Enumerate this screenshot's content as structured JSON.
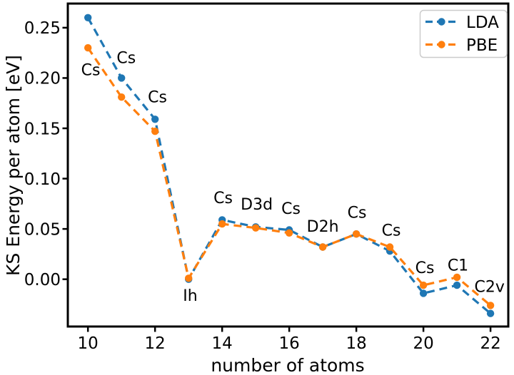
{
  "chart_data": {
    "type": "line",
    "xlabel": "number of atoms",
    "ylabel": "KS Energy per atom [eV]",
    "x": [
      10,
      11,
      12,
      13,
      14,
      15,
      16,
      17,
      18,
      19,
      20,
      21,
      22
    ],
    "series": [
      {
        "name": "LDA",
        "color": "#1f77b4",
        "linestyle": "dashed",
        "marker": "circle",
        "values": [
          0.26,
          0.2,
          0.159,
          0.0,
          0.059,
          0.052,
          0.049,
          0.032,
          0.045,
          0.028,
          -0.014,
          -0.006,
          -0.034
        ]
      },
      {
        "name": "PBE",
        "color": "#ff7f0e",
        "linestyle": "dashed",
        "marker": "circle",
        "values": [
          0.23,
          0.181,
          0.147,
          0.001,
          0.055,
          0.051,
          0.046,
          0.032,
          0.045,
          0.032,
          -0.006,
          0.002,
          -0.026
        ]
      }
    ],
    "xticks": [
      {
        "value": 10,
        "label": "10"
      },
      {
        "value": 12,
        "label": "12"
      },
      {
        "value": 14,
        "label": "14"
      },
      {
        "value": 16,
        "label": "16"
      },
      {
        "value": 18,
        "label": "18"
      },
      {
        "value": 20,
        "label": "20"
      },
      {
        "value": 22,
        "label": "22"
      }
    ],
    "yticks": [
      {
        "value": 0.0,
        "label": "0.00"
      },
      {
        "value": 0.05,
        "label": "0.05"
      },
      {
        "value": 0.1,
        "label": "0.10"
      },
      {
        "value": 0.15,
        "label": "0.15"
      },
      {
        "value": 0.2,
        "label": "0.20"
      },
      {
        "value": 0.25,
        "label": "0.25"
      }
    ],
    "xlim": [
      9.4,
      22.53
    ],
    "ylim": [
      -0.047,
      0.274
    ],
    "grid": false,
    "legend": {
      "position": "upper right",
      "entries": [
        "LDA",
        "PBE"
      ]
    },
    "point_labels": [
      {
        "text": "Cs",
        "x": 10.08,
        "y": 0.208
      },
      {
        "text": "Cs",
        "x": 11.14,
        "y": 0.22
      },
      {
        "text": "Cs",
        "x": 12.07,
        "y": 0.181
      },
      {
        "text": "Ih",
        "x": 13.05,
        "y": -0.016
      },
      {
        "text": "Cs",
        "x": 14.03,
        "y": 0.081
      },
      {
        "text": "D3d",
        "x": 15.03,
        "y": 0.0745
      },
      {
        "text": "Cs",
        "x": 16.05,
        "y": 0.0704
      },
      {
        "text": "D2h",
        "x": 17.0,
        "y": 0.0527
      },
      {
        "text": "Cs",
        "x": 18.02,
        "y": 0.0665
      },
      {
        "text": "Cs",
        "x": 19.04,
        "y": 0.0488
      },
      {
        "text": "Cs",
        "x": 20.04,
        "y": 0.0115
      },
      {
        "text": "C1",
        "x": 21.03,
        "y": 0.0138
      },
      {
        "text": "C2v",
        "x": 21.97,
        "y": -0.0074
      }
    ]
  }
}
